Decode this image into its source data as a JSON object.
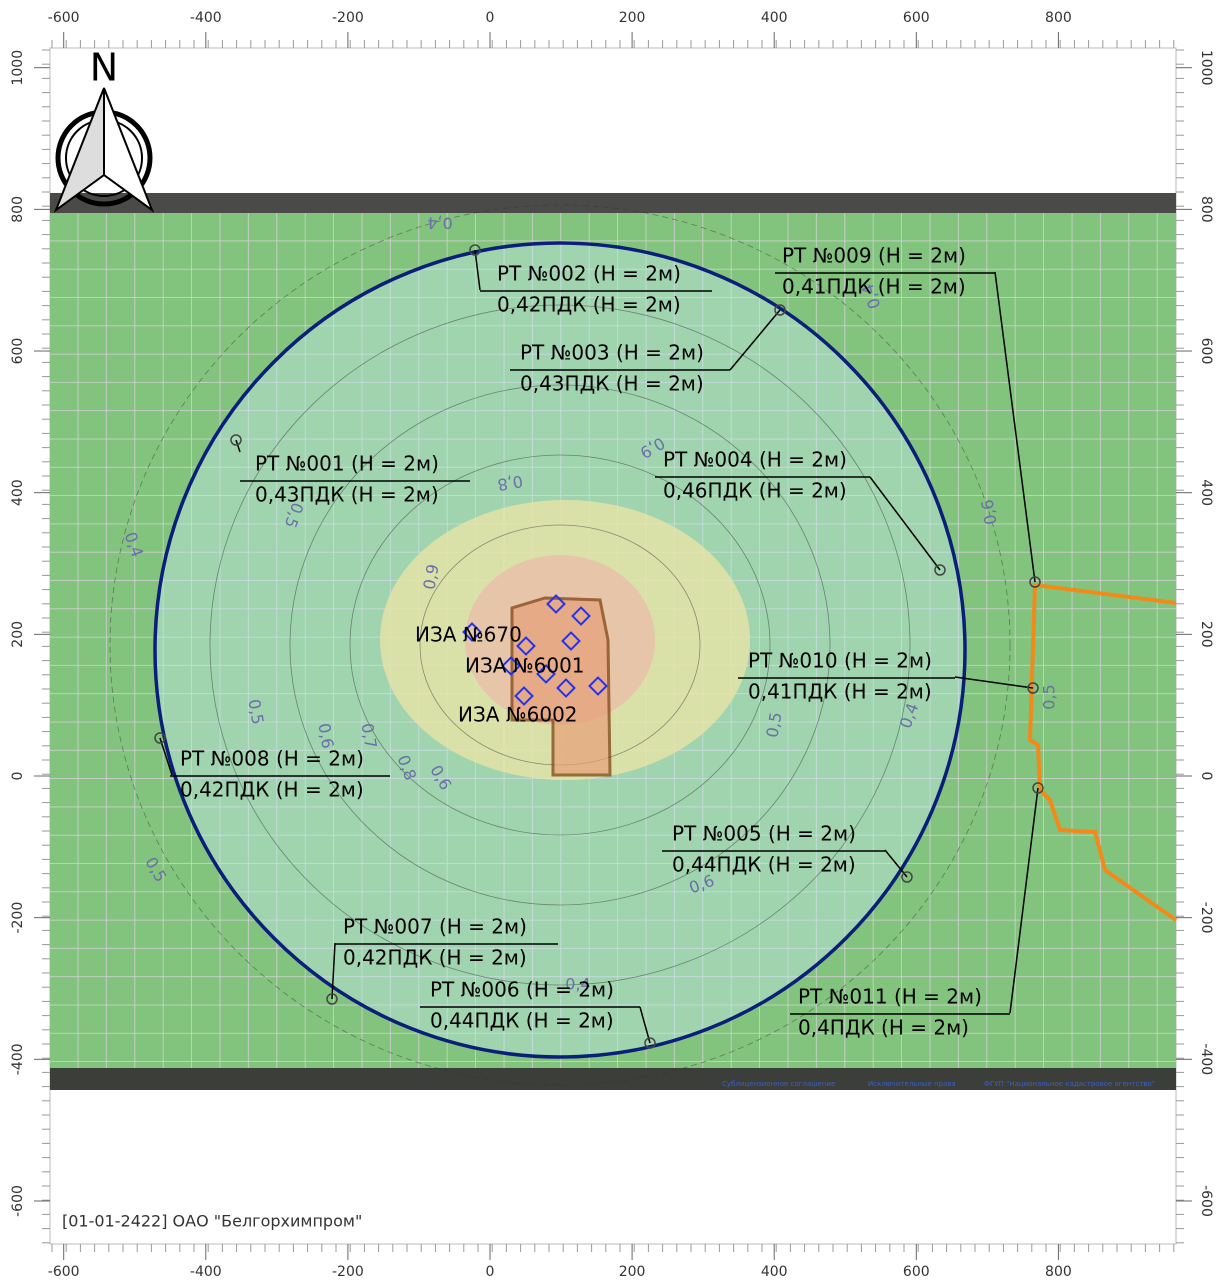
{
  "north": "N",
  "axes": {
    "xticks": [
      -600,
      -400,
      -200,
      0,
      200,
      400,
      600,
      800
    ],
    "yticks": [
      1000,
      800,
      600,
      400,
      200,
      0,
      -200,
      -400,
      -600
    ]
  },
  "points": [
    {
      "name": "РТ №001 (Н = 2м)",
      "value": "0,43ПДК (Н = 2м)"
    },
    {
      "name": "РТ №002 (Н = 2м)",
      "value": "0,42ПДК (Н = 2м)"
    },
    {
      "name": "РТ №003 (Н = 2м)",
      "value": "0,43ПДК (Н = 2м)"
    },
    {
      "name": "РТ №004 (Н = 2м)",
      "value": "0,46ПДК (Н = 2м)"
    },
    {
      "name": "РТ №005 (Н = 2м)",
      "value": "0,44ПДК (Н = 2м)"
    },
    {
      "name": "РТ №006 (Н = 2м)",
      "value": "0,44ПДК (Н = 2м)"
    },
    {
      "name": "РТ №007 (Н = 2м)",
      "value": "0,42ПДК (Н = 2м)"
    },
    {
      "name": "РТ №008 (Н = 2м)",
      "value": "0,42ПДК (Н = 2м)"
    },
    {
      "name": "РТ №009 (Н = 2м)",
      "value": "0,41ПДК (Н = 2м)"
    },
    {
      "name": "РТ №010 (Н = 2м)",
      "value": "0,41ПДК (Н = 2м)"
    },
    {
      "name": "РТ №011 (Н = 2м)",
      "value": "0,4ПДК (Н = 2м)"
    }
  ],
  "sources": [
    "ИЗА №670",
    "ИЗА №6001",
    "ИЗА №6002"
  ],
  "contour_labels": [
    "0,4",
    "0,9",
    "0,8",
    "0,5",
    "0,4",
    "0,9",
    "0,5",
    "0,6",
    "0,7",
    "0,8",
    "0,6",
    "0,5",
    "0,4",
    "0,5",
    "0,6",
    "0,4",
    "0,5",
    "0,4",
    "0,6"
  ],
  "attribution": [
    "Сублицензионное соглашение",
    "Исключительные права",
    "ФГУП \"Национальное кадастровое агентство\""
  ],
  "footer": "[01-01-2422] ОАО \"Белгорхимпром\""
}
